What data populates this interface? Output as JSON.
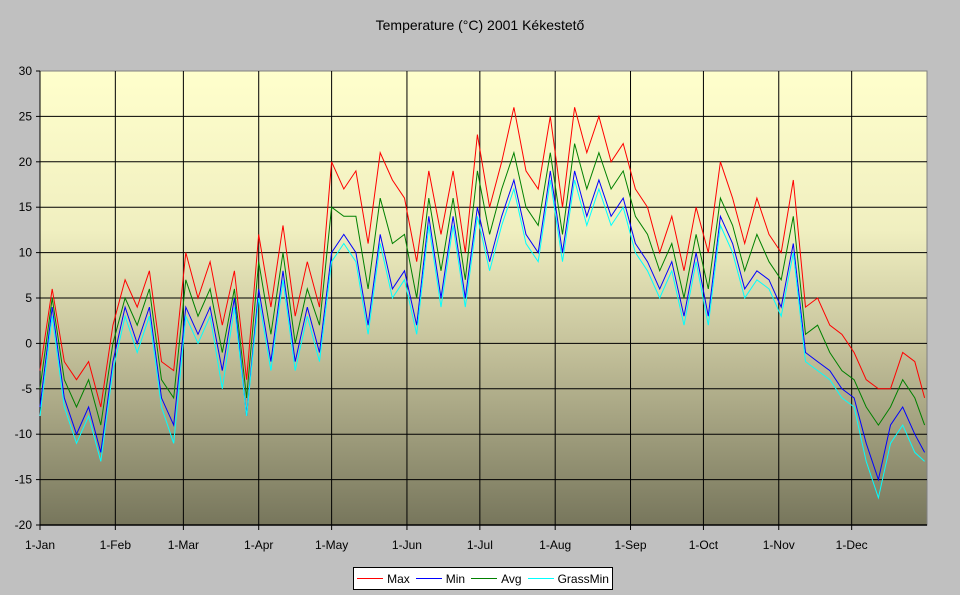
{
  "chart_data": {
    "type": "line",
    "title": "Temperature (°C) 2001 Kékestető",
    "xlabel": "",
    "ylabel": "",
    "ylim": [
      -20,
      30
    ],
    "yticks": [
      30,
      25,
      20,
      15,
      10,
      5,
      0,
      -5,
      -10,
      -15,
      -20
    ],
    "xlim_days": [
      0,
      365
    ],
    "xticks": [
      {
        "label": "1-Jan",
        "day": 0
      },
      {
        "label": "1-Feb",
        "day": 31
      },
      {
        "label": "1-Mar",
        "day": 59
      },
      {
        "label": "1-Apr",
        "day": 90
      },
      {
        "label": "1-May",
        "day": 120
      },
      {
        "label": "1-Jun",
        "day": 151
      },
      {
        "label": "1-Jul",
        "day": 181
      },
      {
        "label": "1-Aug",
        "day": 212
      },
      {
        "label": "1-Sep",
        "day": 243
      },
      {
        "label": "1-Oct",
        "day": 273
      },
      {
        "label": "1-Nov",
        "day": 304
      },
      {
        "label": "1-Dec",
        "day": 334
      }
    ],
    "grid": true,
    "legend_position": "bottom-center",
    "x_days": [
      0,
      5,
      10,
      15,
      20,
      25,
      30,
      35,
      40,
      45,
      50,
      55,
      60,
      65,
      70,
      75,
      80,
      85,
      90,
      95,
      100,
      105,
      110,
      115,
      120,
      125,
      130,
      135,
      140,
      145,
      150,
      155,
      160,
      165,
      170,
      175,
      180,
      185,
      190,
      195,
      200,
      205,
      210,
      215,
      220,
      225,
      230,
      235,
      240,
      245,
      250,
      255,
      260,
      265,
      270,
      275,
      280,
      285,
      290,
      295,
      300,
      305,
      310,
      315,
      320,
      325,
      330,
      335,
      340,
      345,
      350,
      355,
      360,
      364
    ],
    "series": [
      {
        "name": "Max",
        "color": "#ff0000",
        "values": [
          -3,
          6,
          -2,
          -4,
          -2,
          -7,
          2,
          7,
          4,
          8,
          -2,
          -3,
          10,
          5,
          9,
          2,
          8,
          -4,
          12,
          4,
          13,
          3,
          9,
          4,
          20,
          17,
          19,
          11,
          21,
          18,
          16,
          9,
          19,
          12,
          19,
          10,
          23,
          15,
          20,
          26,
          19,
          17,
          25,
          15,
          26,
          21,
          25,
          20,
          22,
          17,
          15,
          10,
          14,
          8,
          15,
          10,
          20,
          16,
          11,
          16,
          12,
          10,
          18,
          4,
          5,
          2,
          1,
          -1,
          -4,
          -5,
          -5,
          -1,
          -2,
          -6
        ]
      },
      {
        "name": "Min",
        "color": "#0000ff",
        "values": [
          -7,
          4,
          -6,
          -10,
          -7,
          -12,
          -2,
          4,
          0,
          4,
          -6,
          -9,
          4,
          1,
          4,
          -3,
          5,
          -8,
          6,
          -2,
          8,
          -2,
          4,
          -1,
          10,
          12,
          10,
          2,
          12,
          6,
          8,
          2,
          14,
          5,
          14,
          5,
          15,
          9,
          14,
          18,
          12,
          10,
          19,
          10,
          19,
          14,
          18,
          14,
          16,
          11,
          9,
          6,
          9,
          3,
          10,
          3,
          14,
          11,
          6,
          8,
          7,
          4,
          11,
          -1,
          -2,
          -3,
          -5,
          -6,
          -11,
          -15,
          -9,
          -7,
          -10,
          -12
        ]
      },
      {
        "name": "Avg",
        "color": "#008000",
        "values": [
          -5,
          5,
          -4,
          -7,
          -4,
          -9,
          0,
          5,
          2,
          6,
          -4,
          -6,
          7,
          3,
          6,
          -1,
          6,
          -6,
          9,
          1,
          10,
          0,
          6,
          2,
          15,
          14,
          14,
          6,
          16,
          11,
          12,
          5,
          16,
          8,
          16,
          7,
          19,
          12,
          17,
          21,
          15,
          13,
          21,
          12,
          22,
          17,
          21,
          17,
          19,
          14,
          12,
          8,
          11,
          5,
          12,
          6,
          16,
          13,
          8,
          12,
          9,
          7,
          14,
          1,
          2,
          -1,
          -3,
          -4,
          -7,
          -9,
          -7,
          -4,
          -6,
          -9
        ]
      },
      {
        "name": "GrassMin",
        "color": "#00ffff",
        "values": [
          -8,
          3,
          -7,
          -11,
          -8,
          -13,
          -3,
          3,
          -1,
          3,
          -7,
          -11,
          3,
          0,
          3,
          -5,
          4,
          -8,
          5,
          -3,
          7,
          -3,
          3,
          -2,
          9,
          11,
          9,
          1,
          11,
          5,
          7,
          1,
          13,
          4,
          13,
          4,
          14,
          8,
          13,
          17,
          11,
          9,
          18,
          9,
          18,
          13,
          17,
          13,
          15,
          10,
          8,
          5,
          8,
          2,
          9,
          2,
          13,
          10,
          5,
          7,
          6,
          3,
          10,
          -2,
          -3,
          -4,
          -6,
          -7,
          -13,
          -17,
          -11,
          -9,
          -12,
          -13
        ]
      }
    ]
  }
}
